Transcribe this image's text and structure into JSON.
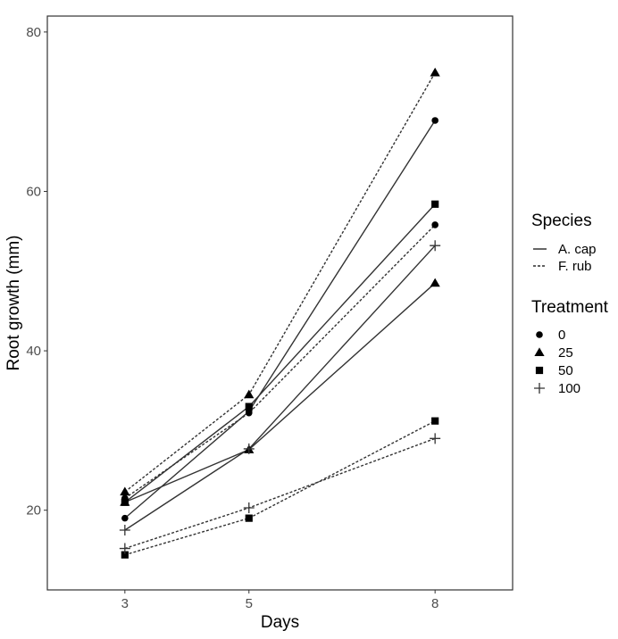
{
  "chart_data": {
    "type": "line",
    "title": "",
    "xlabel": "Days",
    "ylabel": "Root growth (mm)",
    "x": [
      3,
      5,
      8
    ],
    "xticks": [
      "3",
      "5",
      "8"
    ],
    "yticks": [
      "20",
      "40",
      "60",
      "80"
    ],
    "xlim": [
      1.75,
      9.25
    ],
    "ylim": [
      10,
      82
    ],
    "grid": false,
    "legend": {
      "species_title": "Species",
      "species": [
        {
          "label": "A. cap",
          "linetype": "solid"
        },
        {
          "label": "F. rub",
          "linetype": "dashed"
        }
      ],
      "treatment_title": "Treatment",
      "treatments": [
        {
          "label": "0",
          "shape": "circle"
        },
        {
          "label": "25",
          "shape": "triangle"
        },
        {
          "label": "50",
          "shape": "square"
        },
        {
          "label": "100",
          "shape": "plus"
        }
      ]
    },
    "series": [
      {
        "name": "A. cap / 0",
        "species": "A. cap",
        "treatment": "0",
        "values": [
          19.0,
          32.4,
          68.9
        ]
      },
      {
        "name": "A. cap / 25",
        "species": "A. cap",
        "treatment": "25",
        "values": [
          21.0,
          27.6,
          48.5
        ]
      },
      {
        "name": "A. cap / 50",
        "species": "A. cap",
        "treatment": "50",
        "values": [
          21.0,
          33.0,
          58.4
        ]
      },
      {
        "name": "A. cap / 100",
        "species": "A. cap",
        "treatment": "100",
        "values": [
          17.5,
          27.7,
          53.2
        ]
      },
      {
        "name": "F. rub / 0",
        "species": "F. rub",
        "treatment": "0",
        "values": [
          21.5,
          32.2,
          55.8
        ]
      },
      {
        "name": "F. rub / 25",
        "species": "F. rub",
        "treatment": "25",
        "values": [
          22.3,
          34.5,
          74.9
        ]
      },
      {
        "name": "F. rub / 50",
        "species": "F. rub",
        "treatment": "50",
        "values": [
          14.4,
          19.0,
          31.2
        ]
      },
      {
        "name": "F. rub / 100",
        "species": "F. rub",
        "treatment": "100",
        "values": [
          15.2,
          20.3,
          29.0
        ]
      }
    ]
  }
}
